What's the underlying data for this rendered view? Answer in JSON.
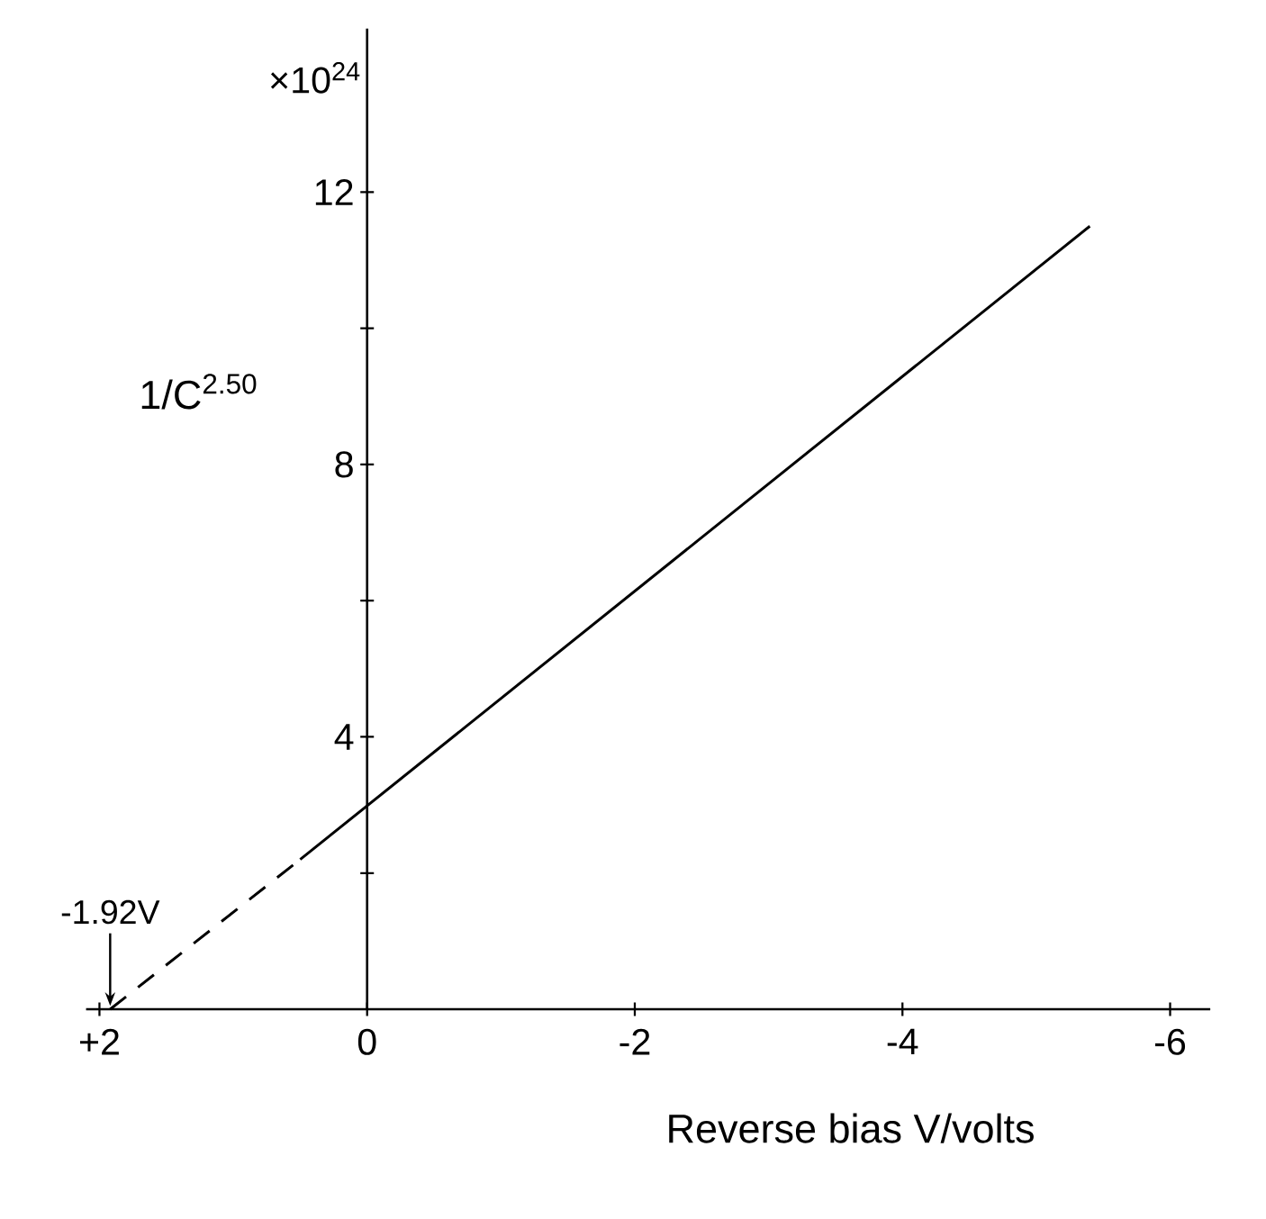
{
  "chart_data": {
    "type": "line",
    "xlabel": "Reverse bias V/volts",
    "ylabel": "1/C$^{2.50}$",
    "xlim": [
      2.1,
      -6.3
    ],
    "ylim": [
      0,
      14.4
    ],
    "xticks": [
      {
        "value": 2,
        "label": "+2"
      },
      0,
      -2,
      -4,
      -6
    ],
    "yticks": [
      {
        "value": 2,
        "label": null
      },
      4,
      {
        "value": 6,
        "label": null
      },
      8,
      {
        "value": 10,
        "label": null
      },
      12
    ],
    "series": [
      {
        "color": "#000000",
        "x": [
          0.5,
          -5.4
        ],
        "values": [
          2.2,
          11.5
        ],
        "line_style": "solid"
      },
      {
        "color": "#000000",
        "x": [
          1.92,
          0.5
        ],
        "values": [
          0,
          2.2
        ],
        "line_style": "dashed"
      }
    ],
    "annotations": [
      "×10$^{24}$",
      {
        "text": "-1.92V",
        "x": 1.92,
        "y": 0
      }
    ],
    "grid": false,
    "marker": "none"
  }
}
